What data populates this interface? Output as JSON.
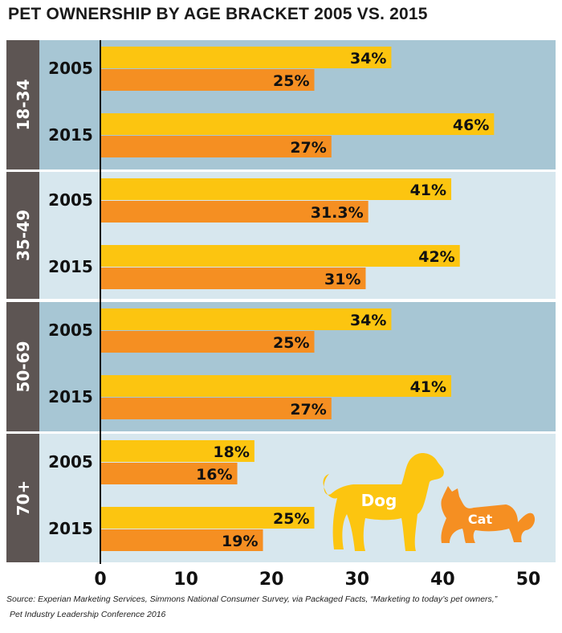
{
  "chart_data": {
    "type": "bar",
    "orientation": "horizontal",
    "title": "PET OWNERSHIP BY AGE BRACKET 2005 VS. 2015",
    "groups": [
      "18-34",
      "35-49",
      "50-69",
      "70+"
    ],
    "years": [
      "2005",
      "2015"
    ],
    "series": [
      {
        "name": "Dog",
        "color": "#fcc510",
        "values": [
          [
            34,
            46
          ],
          [
            41,
            42
          ],
          [
            34,
            41
          ],
          [
            18,
            25
          ]
        ],
        "labels": [
          [
            "34%",
            "46%"
          ],
          [
            "41%",
            "42%"
          ],
          [
            "34%",
            "41%"
          ],
          [
            "18%",
            "25%"
          ]
        ]
      },
      {
        "name": "Cat",
        "color": "#f58f22",
        "values": [
          [
            25,
            27
          ],
          [
            31.3,
            31
          ],
          [
            25,
            27
          ],
          [
            16,
            19
          ]
        ],
        "labels": [
          [
            "25%",
            "27%"
          ],
          [
            "31.3%",
            "31%"
          ],
          [
            "25%",
            "27%"
          ],
          [
            "16%",
            "19%"
          ]
        ]
      }
    ],
    "xlim": [
      0,
      50
    ],
    "xticks": [
      "0",
      "10",
      "20",
      "30",
      "40",
      "50"
    ],
    "group_backgrounds": [
      "#a7c6d4",
      "#d7e7ee"
    ],
    "group_label_bg": "#5d5553",
    "grid": false,
    "legend": "bottom-right (dog and cat silhouettes)"
  },
  "source_line1": "Source: Experian Marketing Services, Simmons National Consumer Survey, via Packaged Facts, “Marketing to today’s pet owners,”",
  "source_line2": "Pet Industry Leadership Conference 2016"
}
